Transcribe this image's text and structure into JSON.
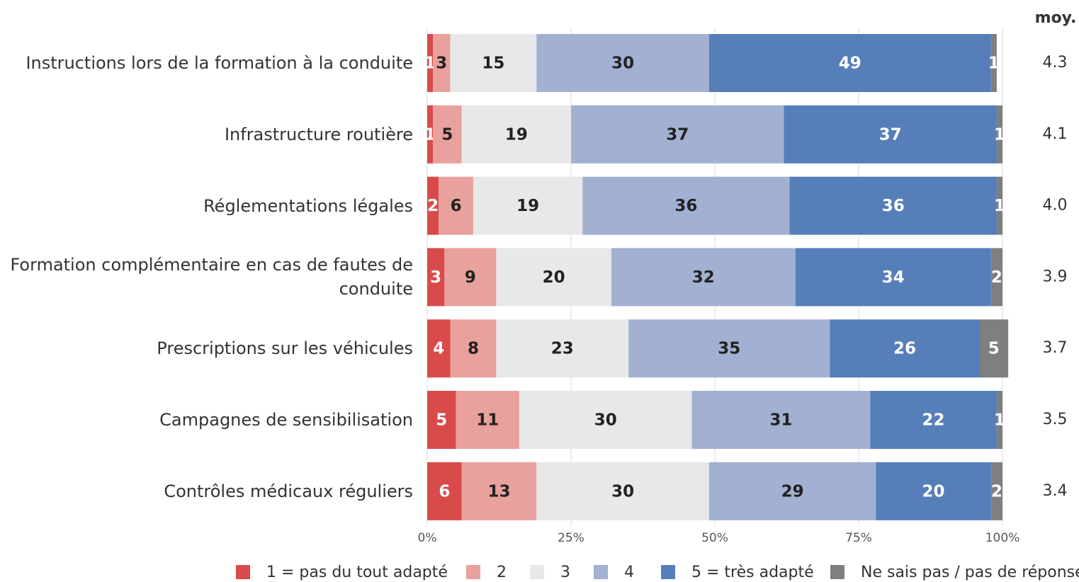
{
  "chart_data": {
    "type": "stacked_bar_horizontal",
    "categories": [
      "Instructions lors de la formation à la conduite",
      "Infrastructure routière",
      "Réglementations légales",
      "Formation complémentaire en cas de fautes de conduite",
      "Prescriptions sur les véhicules",
      "Campagnes de sensibilisation",
      "Contrôles médicaux réguliers"
    ],
    "series": [
      {
        "name": "1 = pas du tout adapté",
        "color": "#d94b4b",
        "label_color": "#ffffff",
        "values": [
          1,
          1,
          2,
          3,
          4,
          5,
          6
        ]
      },
      {
        "name": "2",
        "color": "#e8a19c",
        "label_color": "#222222",
        "values": [
          3,
          5,
          6,
          9,
          8,
          11,
          13
        ]
      },
      {
        "name": "3",
        "color": "#e8e8e8",
        "label_color": "#222222",
        "values": [
          15,
          19,
          19,
          20,
          23,
          30,
          30
        ]
      },
      {
        "name": "4",
        "color": "#a2b1d2",
        "label_color": "#222222",
        "values": [
          30,
          37,
          36,
          32,
          35,
          31,
          29
        ]
      },
      {
        "name": "5 = très adapté",
        "color": "#567eb9",
        "label_color": "#ffffff",
        "values": [
          49,
          37,
          36,
          34,
          26,
          22,
          20
        ]
      },
      {
        "name": "Ne sais pas / pas de réponse",
        "color": "#7f7f7f",
        "label_color": "#ffffff",
        "values": [
          1,
          1,
          1,
          2,
          5,
          1,
          2
        ]
      }
    ],
    "xlim": [
      0,
      100
    ],
    "xticks": [
      {
        "value": 0,
        "label": "0%"
      },
      {
        "value": 25,
        "label": "25%"
      },
      {
        "value": 50,
        "label": "50%"
      },
      {
        "value": 75,
        "label": "75%"
      },
      {
        "value": 100,
        "label": "100%"
      }
    ],
    "grid": true,
    "mean_header": "moy.",
    "means": [
      4.3,
      4.1,
      4.0,
      3.9,
      3.7,
      3.5,
      3.4
    ],
    "mean_labels": [
      "4.3",
      "4.1",
      "4.0",
      "3.9",
      "3.7",
      "3.5",
      "3.4"
    ],
    "legend": "bottom"
  }
}
